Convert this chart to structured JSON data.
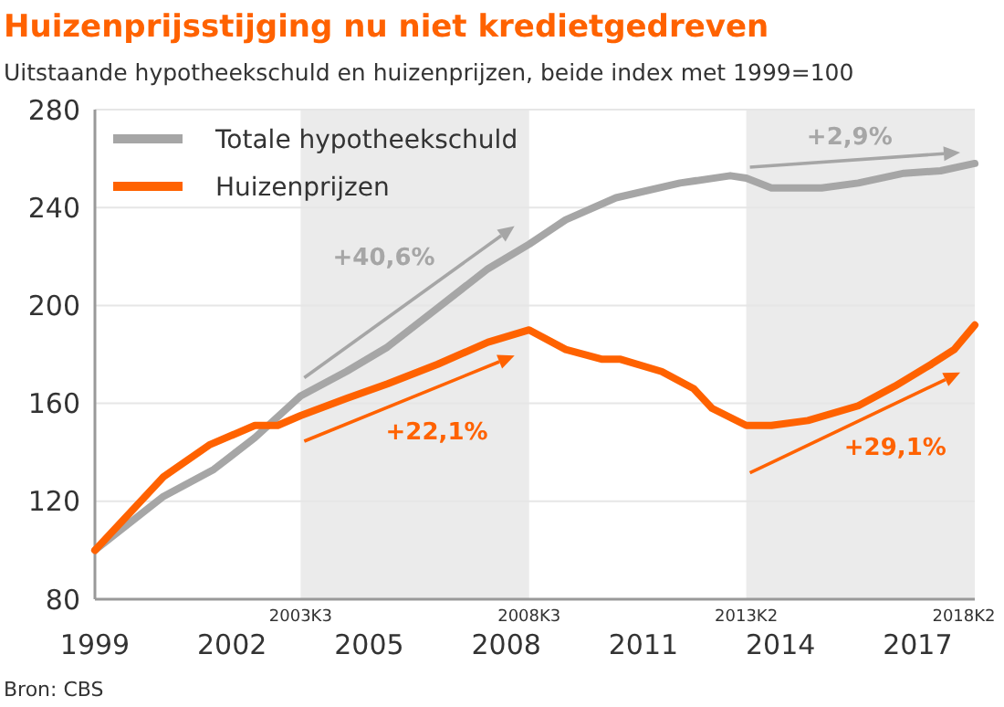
{
  "chart_data": {
    "type": "line",
    "title": "Huizenprijsstijging nu niet kredietgedreven",
    "subtitle": "Uitstaande hypotheekschuld en huizenprijzen, beide index met 1999=100",
    "series": [
      {
        "name": "Totale hypotheekschuld",
        "color": "#a6a6a6",
        "x": [
          1999,
          2000.5,
          2001.6,
          2002.5,
          2003.5,
          2004.5,
          2005.4,
          2006.5,
          2007.6,
          2008.5,
          2009.3,
          2010.4,
          2011.8,
          2012.9,
          2013.25,
          2013.8,
          2014.9,
          2015.7,
          2016.7,
          2017.5,
          2018.25
        ],
        "values": [
          100,
          122,
          133,
          146,
          163,
          173,
          183,
          199,
          215,
          225,
          235,
          244,
          250,
          253,
          252,
          248,
          248,
          250,
          254,
          255,
          258
        ]
      },
      {
        "name": "Huizenprijzen",
        "color": "#ff6200",
        "x": [
          1999,
          2000.5,
          2001.5,
          2002.5,
          2003.0,
          2003.5,
          2004.5,
          2005.4,
          2006.5,
          2007.6,
          2008.5,
          2009.3,
          2010.1,
          2010.5,
          2011.4,
          2012.1,
          2012.5,
          2013.25,
          2013.8,
          2014.6,
          2015.7,
          2016.5,
          2017.3,
          2017.8,
          2018.25
        ],
        "values": [
          100,
          130,
          143,
          151,
          151,
          155,
          162,
          168,
          176,
          185,
          190,
          182,
          178,
          178,
          173,
          166,
          158,
          151,
          151,
          153,
          159,
          167,
          176,
          182,
          192
        ]
      }
    ],
    "xlim": [
      1999,
      2018.25
    ],
    "xticks": [
      1999,
      2002,
      2005,
      2008,
      2011,
      2014,
      2017
    ],
    "ylim": [
      80,
      280
    ],
    "yticks": [
      80,
      120,
      160,
      200,
      240,
      280
    ],
    "grid": "y",
    "legend": "top left",
    "line_style": "solid",
    "marker": "none",
    "bands": [
      {
        "axis": "x",
        "from": 2003.5,
        "to": 2008.5,
        "color": "#ebebeb"
      },
      {
        "axis": "x",
        "from": 2013.25,
        "to": 2018.25,
        "color": "#ebebeb"
      }
    ],
    "annotations": [
      "+40,6%",
      "+22,1%",
      "+2,9%",
      "+29,1%",
      "2003K3",
      "2008K3",
      "2013K2",
      "2018K2",
      "Bron: CBS"
    ]
  }
}
